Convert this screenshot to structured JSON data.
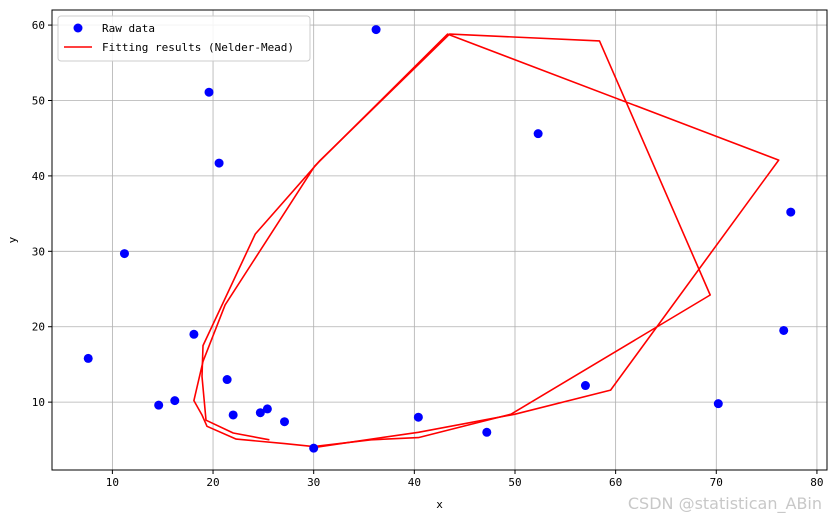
{
  "chart_data": {
    "type": "scatter",
    "xlabel": "x",
    "ylabel": "y",
    "xlim": [
      4,
      81
    ],
    "ylim": [
      1,
      62
    ],
    "xticks": [
      10,
      20,
      30,
      40,
      50,
      60,
      70,
      80
    ],
    "yticks": [
      10,
      20,
      30,
      40,
      50,
      60
    ],
    "grid": true,
    "legend_position": "top-left",
    "series": [
      {
        "name": "Raw data",
        "kind": "scatter",
        "color": "#0000ff",
        "points": [
          [
            7.6,
            15.8
          ],
          [
            11.2,
            29.7
          ],
          [
            14.6,
            9.6
          ],
          [
            16.2,
            10.2
          ],
          [
            18.1,
            19.0
          ],
          [
            19.6,
            51.1
          ],
          [
            20.6,
            41.7
          ],
          [
            21.4,
            13.0
          ],
          [
            22.0,
            8.3
          ],
          [
            24.7,
            8.6
          ],
          [
            25.4,
            9.1
          ],
          [
            27.1,
            7.4
          ],
          [
            30.0,
            3.9
          ],
          [
            36.2,
            59.4
          ],
          [
            40.4,
            8.0
          ],
          [
            47.2,
            6.0
          ],
          [
            52.3,
            45.6
          ],
          [
            57.0,
            12.2
          ],
          [
            70.2,
            9.8
          ],
          [
            76.7,
            19.5
          ],
          [
            77.4,
            35.2
          ]
        ]
      },
      {
        "name": "Fitting results (Nelder-Mead)",
        "kind": "line",
        "color": "#ff0000",
        "points": [
          [
            25.6,
            5.0
          ],
          [
            22.0,
            5.9
          ],
          [
            19.3,
            7.6
          ],
          [
            18.9,
            13.4
          ],
          [
            19.0,
            17.5
          ],
          [
            24.2,
            32.3
          ],
          [
            30.6,
            42.0
          ],
          [
            43.5,
            58.8
          ],
          [
            58.4,
            57.9
          ],
          [
            69.4,
            24.2
          ],
          [
            49.6,
            8.4
          ],
          [
            40.4,
            5.3
          ],
          [
            35.7,
            5.0
          ],
          [
            30.0,
            4.1
          ]
        ]
      },
      {
        "name": "",
        "kind": "line",
        "color": "#ff0000",
        "points": [
          [
            30.0,
            4.1
          ],
          [
            27.1,
            4.5
          ],
          [
            22.3,
            5.1
          ],
          [
            19.4,
            6.8
          ],
          [
            18.9,
            8.3
          ],
          [
            18.1,
            10.2
          ],
          [
            19.0,
            15.4
          ],
          [
            21.2,
            22.9
          ],
          [
            30.1,
            41.3
          ],
          [
            43.3,
            58.8
          ],
          [
            76.2,
            42.1
          ],
          [
            59.5,
            11.6
          ],
          [
            50.0,
            8.4
          ],
          [
            40.4,
            6.0
          ],
          [
            30.1,
            4.0
          ]
        ]
      }
    ]
  },
  "watermark": "CSDN @statistican_ABin"
}
